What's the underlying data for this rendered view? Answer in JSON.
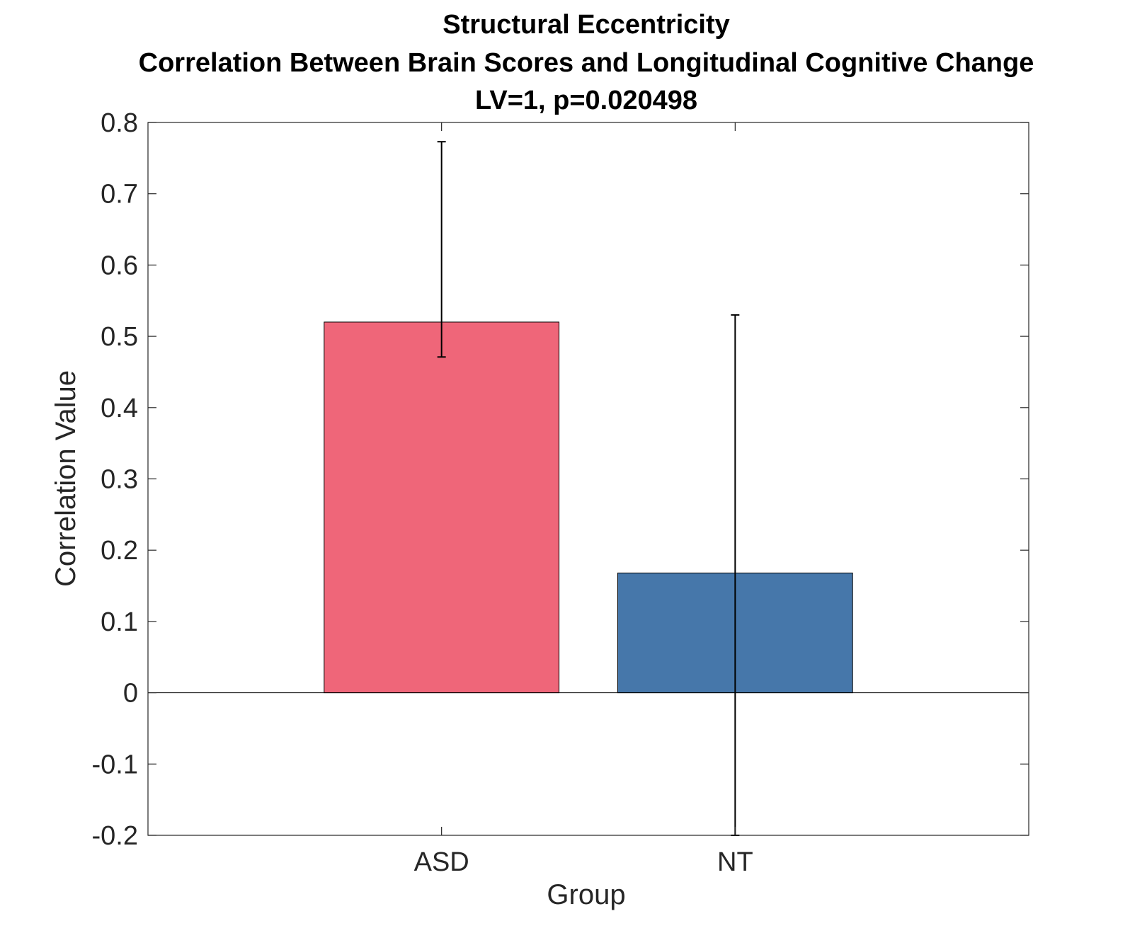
{
  "chart_data": {
    "type": "bar",
    "title_lines": [
      "Structural Eccentricity",
      "Correlation Between Brain Scores and Longitudinal Cognitive Change",
      "LV=1, p=0.020498"
    ],
    "xlabel": "Group",
    "ylabel": "Correlation Value",
    "categories": [
      "ASD",
      "NT"
    ],
    "values": [
      0.52,
      0.168
    ],
    "error_lower": [
      0.471,
      -0.2
    ],
    "error_upper": [
      0.773,
      0.53
    ],
    "bar_colors": [
      "#EF6679",
      "#4677AA"
    ],
    "ylim": [
      -0.2,
      0.8
    ],
    "yticks": [
      "-0.2",
      "-0.1",
      "0",
      "0.1",
      "0.2",
      "0.3",
      "0.4",
      "0.5",
      "0.6",
      "0.7",
      "0.8"
    ],
    "grid": false,
    "legend": "none"
  }
}
